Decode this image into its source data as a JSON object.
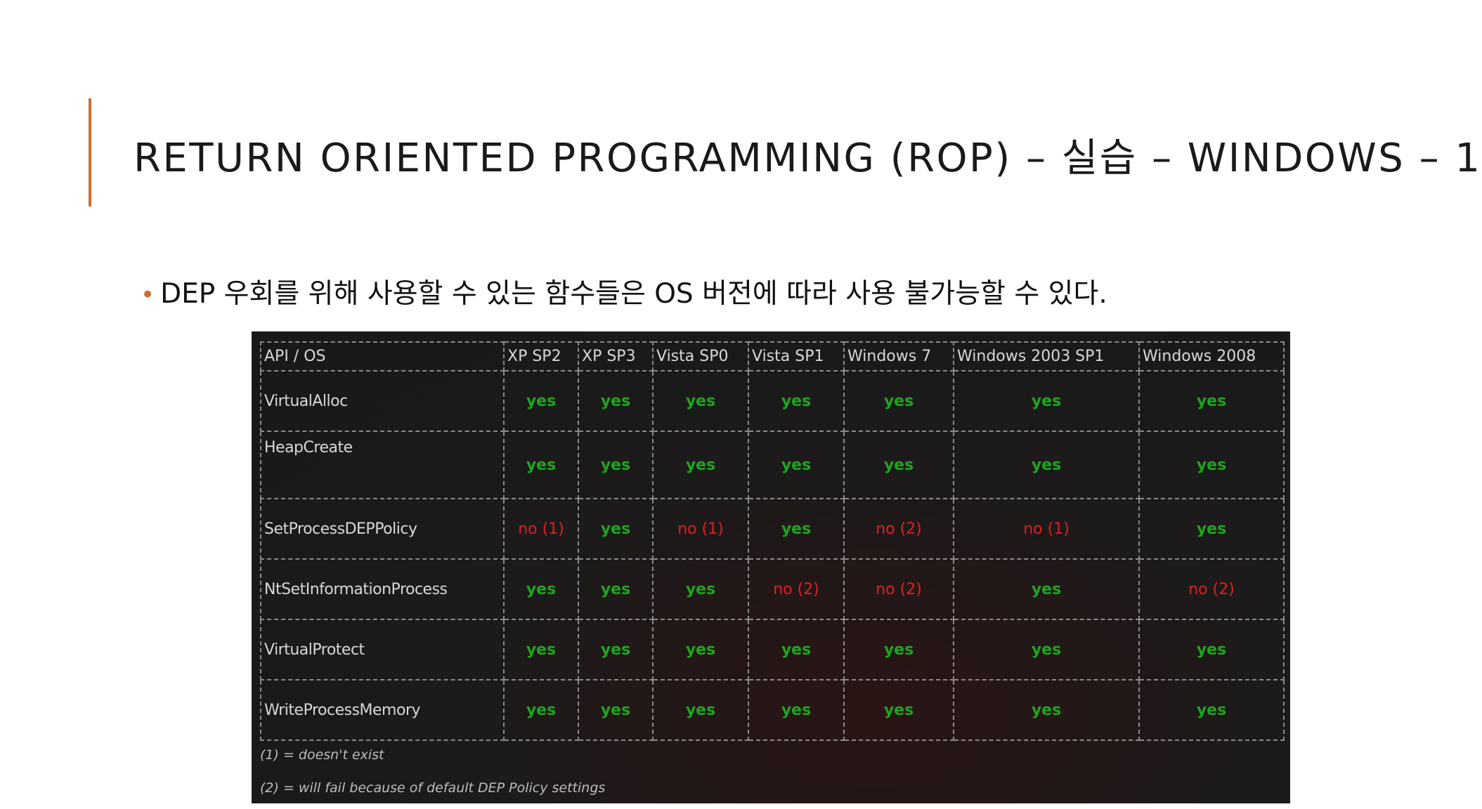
{
  "slide": {
    "title": "RETURN ORIENTED PROGRAMMING (ROP) – 실습 – WINDOWS – 1",
    "accent_color": "#d4692a",
    "bullet": "DEP 우회를 위해 사용할 수 있는 함수들은 OS 버전에 따라 사용 불가능할 수 있다."
  },
  "table": {
    "headers": [
      "API / OS",
      "XP SP2",
      "XP SP3",
      "Vista SP0",
      "Vista SP1",
      "Windows 7",
      "Windows 2003 SP1",
      "Windows 2008"
    ],
    "rows": [
      {
        "api": "VirtualAlloc",
        "values": [
          "yes",
          "yes",
          "yes",
          "yes",
          "yes",
          "yes",
          "yes"
        ]
      },
      {
        "api": "HeapCreate",
        "values": [
          "yes",
          "yes",
          "yes",
          "yes",
          "yes",
          "yes",
          "yes"
        ]
      },
      {
        "api": "SetProcessDEPPolicy",
        "values": [
          "no (1)",
          "yes",
          "no (1)",
          "yes",
          "no (2)",
          "no (1)",
          "yes"
        ]
      },
      {
        "api": "NtSetInformationProcess",
        "values": [
          "yes",
          "yes",
          "yes",
          "no (2)",
          "no (2)",
          "yes",
          "no (2)"
        ]
      },
      {
        "api": "VirtualProtect",
        "values": [
          "yes",
          "yes",
          "yes",
          "yes",
          "yes",
          "yes",
          "yes"
        ]
      },
      {
        "api": "WriteProcessMemory",
        "values": [
          "yes",
          "yes",
          "yes",
          "yes",
          "yes",
          "yes",
          "yes"
        ]
      }
    ],
    "footnotes": [
      "(1) = doesn't exist",
      "(2) = will fail because of default DEP Policy settings"
    ],
    "colors": {
      "yes": "#1fa51f",
      "no": "#e02020"
    }
  }
}
